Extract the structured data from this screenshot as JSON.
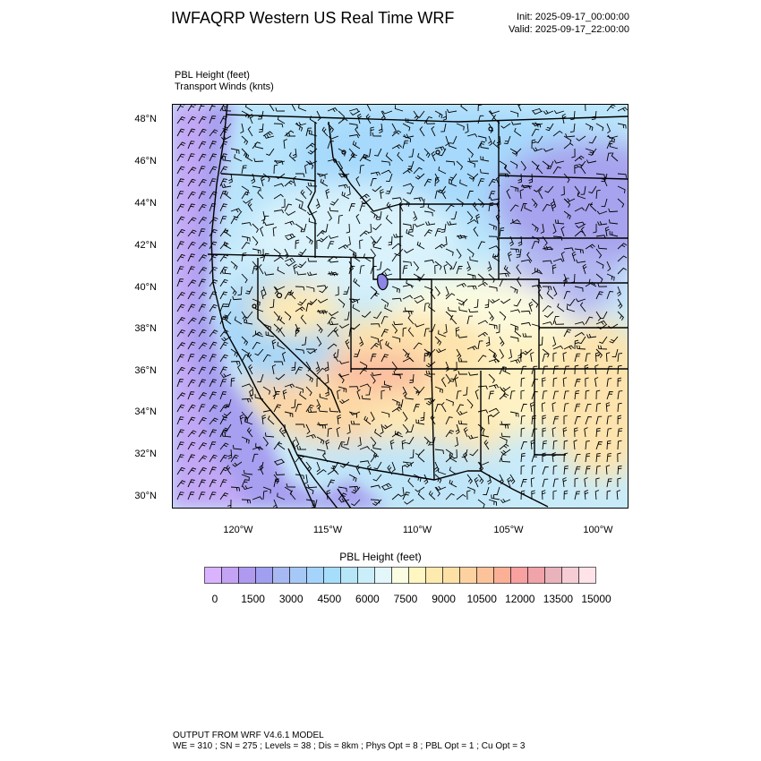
{
  "header": {
    "title": "IWFAQRP Western US Real Time WRF",
    "init": "Init: 2025-09-17_00:00:00",
    "valid": "Valid: 2025-09-17_22:00:00"
  },
  "fields": {
    "primary": "PBL Height   (feet)",
    "secondary": "Transport Winds   (knts)"
  },
  "map": {
    "lat_labels": [
      "48°N",
      "46°N",
      "44°N",
      "42°N",
      "40°N",
      "38°N",
      "36°N",
      "34°N",
      "32°N",
      "30°N"
    ],
    "lon_labels": [
      "120°W",
      "115°W",
      "110°W",
      "105°W",
      "100°W"
    ]
  },
  "colorbar": {
    "title": "PBL Height  (feet)",
    "labels": [
      "0",
      "1500",
      "3000",
      "4500",
      "6000",
      "7500",
      "9000",
      "10500",
      "12000",
      "13500",
      "15000"
    ],
    "colors": [
      "#d9b3ff",
      "#c4a3f5",
      "#b09af0",
      "#a09ff0",
      "#a8b8f2",
      "#a6c8f7",
      "#a4d4fb",
      "#a6ddfb",
      "#b7e6f9",
      "#cbeffa",
      "#e3f7fb",
      "#fbfde3",
      "#fff6c2",
      "#feeaaf",
      "#fde0a6",
      "#fdd2a0",
      "#fcc39b",
      "#fbb096",
      "#f9a0a0",
      "#f0a3a8",
      "#e9b3bb",
      "#f6cdd5",
      "#ffe3e8"
    ]
  },
  "footer": {
    "line1": "OUTPUT FROM WRF V4.6.1 MODEL",
    "line2": "WE = 310 ; SN = 275 ; Levels = 38 ; Dis = 8km ; Phys Opt = 8 ; PBL Opt = 1 ; Cu Opt = 3"
  }
}
